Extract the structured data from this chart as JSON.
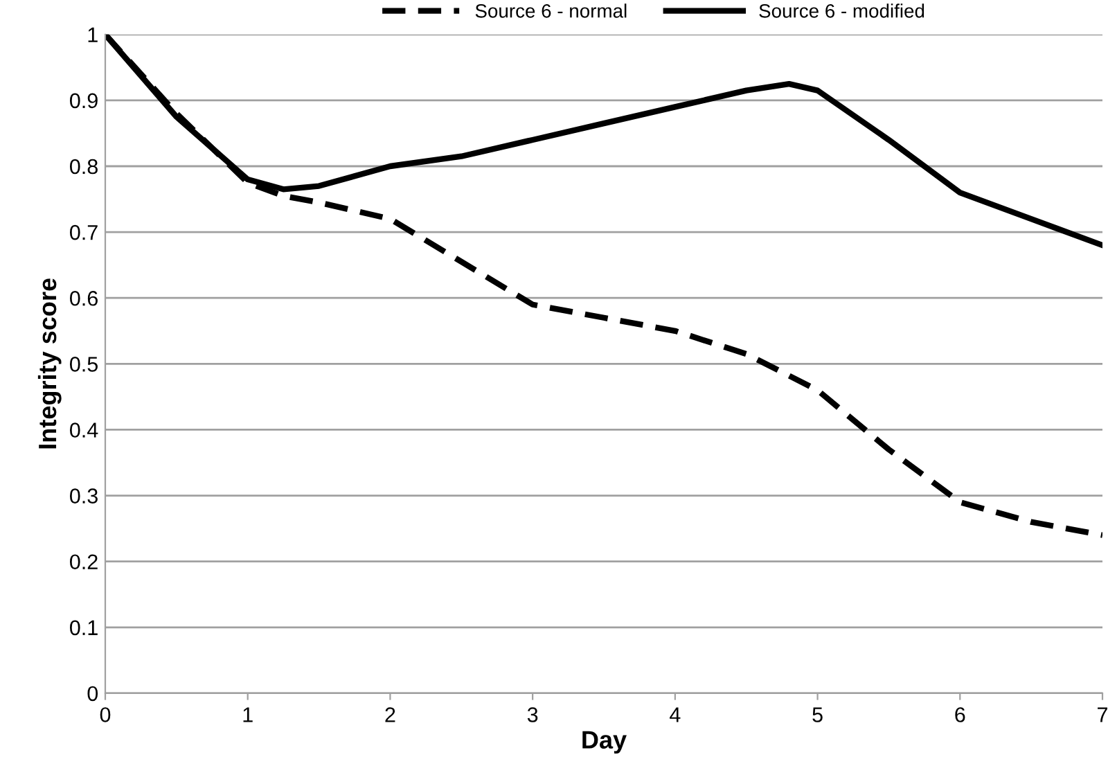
{
  "chart_data": {
    "type": "line",
    "xlabel": "Day",
    "ylabel": "Integrity score",
    "series": [
      {
        "name": "Source 6 - normal",
        "color": "#000000",
        "line_style": "dashed",
        "x": [
          0,
          0.5,
          1,
          1.25,
          1.5,
          2,
          2.5,
          3,
          3.5,
          4,
          4.5,
          5,
          5.5,
          6,
          6.5,
          7
        ],
        "values": [
          1,
          0.88,
          0.775,
          0.755,
          0.745,
          0.72,
          0.655,
          0.59,
          0.57,
          0.55,
          0.515,
          0.46,
          0.37,
          0.29,
          0.26,
          0.24
        ]
      },
      {
        "name": "Source 6 - modified",
        "color": "#000000",
        "line_style": "solid",
        "x": [
          0,
          0.5,
          1,
          1.25,
          1.5,
          2,
          2.5,
          3,
          3.5,
          4,
          4.5,
          4.8,
          5,
          5.5,
          6,
          6.5,
          7
        ],
        "values": [
          1,
          0.875,
          0.78,
          0.765,
          0.77,
          0.8,
          0.815,
          0.84,
          0.865,
          0.89,
          0.915,
          0.925,
          0.915,
          0.84,
          0.76,
          0.72,
          0.68
        ]
      }
    ],
    "xlim": [
      0,
      7
    ],
    "xticks": [
      0,
      1,
      2,
      3,
      4,
      5,
      6,
      7
    ],
    "ylim": [
      0,
      1
    ],
    "yticks": [
      0,
      0.1,
      0.2,
      0.3,
      0.4,
      0.5,
      0.6,
      0.7,
      0.8,
      0.9,
      1
    ],
    "grid": "y",
    "legend": "top",
    "marker": "none"
  }
}
